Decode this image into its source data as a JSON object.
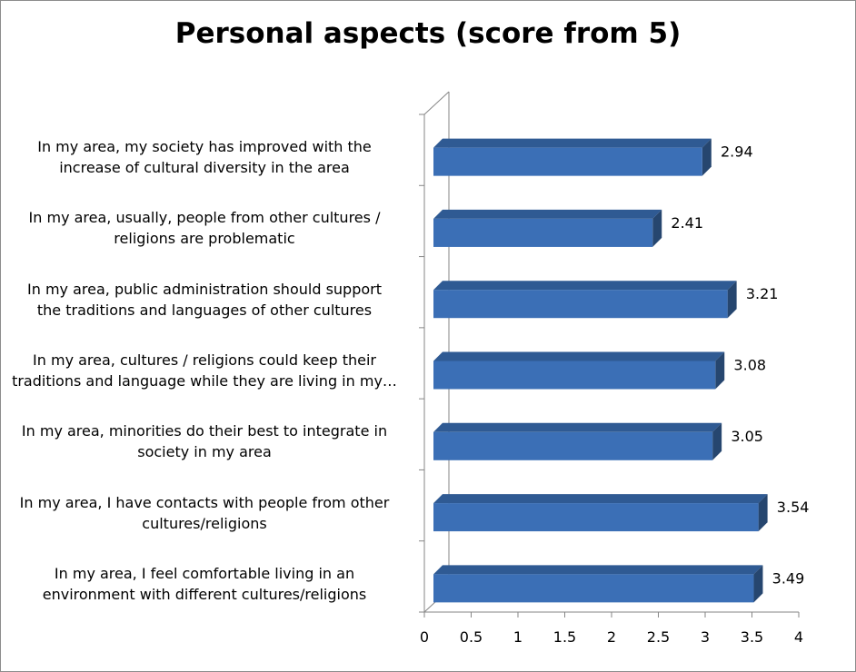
{
  "chart_data": {
    "type": "bar",
    "orientation": "horizontal",
    "style": "3d",
    "title": "Personal aspects (score from 5)",
    "xlabel": "",
    "ylabel": "",
    "xlim": [
      0,
      4
    ],
    "x_ticks": [
      "0",
      "0.5",
      "1",
      "1.5",
      "2",
      "2.5",
      "3",
      "3.5",
      "4"
    ],
    "grid": false,
    "legend": "none",
    "bar_color": "#3b6fb6",
    "categories": [
      "In my area, my society has improved with the increase of cultural diversity in the area",
      "In my area, usually, people from other cultures / religions are problematic",
      "In my area, public administration should support the traditions and languages of other cultures",
      "In my area, cultures / religions could keep their traditions and language while they are living in my…",
      "In my area, minorities do their best to integrate in society in my area",
      "In my area, I have contacts with people from other cultures/religions",
      "In my area, I feel comfortable living in an environment with different cultures/religions"
    ],
    "category_lines": [
      [
        "In my area, my society has improved with the",
        "increase of cultural diversity in the area"
      ],
      [
        "In my area, usually, people from other cultures /",
        "religions are problematic"
      ],
      [
        "In my area, public administration should support",
        "the traditions and languages of other cultures"
      ],
      [
        "In my area, cultures / religions could keep their",
        "traditions and language while they are living in my…"
      ],
      [
        "In my area, minorities do their best to integrate in",
        "society in my area"
      ],
      [
        "In my area, I have contacts with people from other",
        "cultures/religions"
      ],
      [
        "In my area, I feel comfortable living in an",
        "environment with different cultures/religions"
      ]
    ],
    "values": [
      2.94,
      2.41,
      3.21,
      3.08,
      3.05,
      3.54,
      3.49
    ],
    "data_labels": [
      "2.94",
      "2.41",
      "3.21",
      "3.08",
      "3.05",
      "3.54",
      "3.49"
    ]
  }
}
